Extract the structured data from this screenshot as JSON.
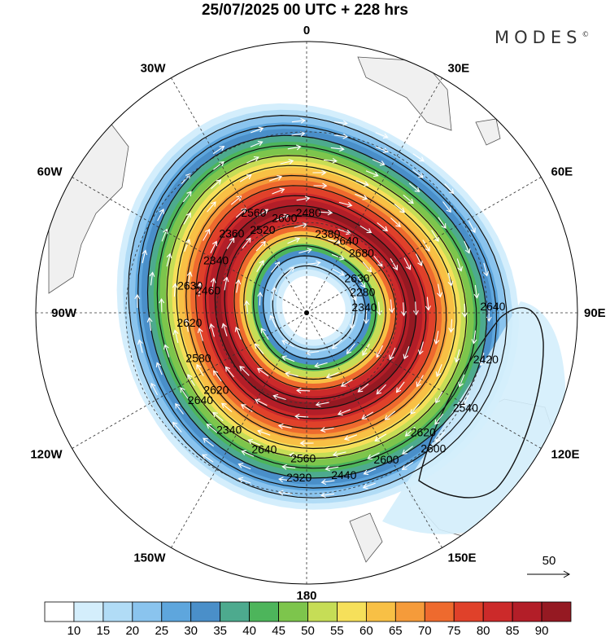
{
  "title": "25/07/2025  00 UTC  + 228 hrs",
  "logo": "MODES",
  "logo_mark": "©",
  "longitude_labels": [
    {
      "text": "0",
      "lon": 0
    },
    {
      "text": "30E",
      "lon": 30
    },
    {
      "text": "60E",
      "lon": 60
    },
    {
      "text": "90E",
      "lon": 90
    },
    {
      "text": "120E",
      "lon": 120
    },
    {
      "text": "150E",
      "lon": 150
    },
    {
      "text": "180",
      "lon": 180
    },
    {
      "text": "150W",
      "lon": -150
    },
    {
      "text": "120W",
      "lon": -120
    },
    {
      "text": "90W",
      "lon": -90
    },
    {
      "text": "60W",
      "lon": -60
    },
    {
      "text": "30W",
      "lon": -30
    }
  ],
  "contour_labels": [
    "2640",
    "2620",
    "2560",
    "2620",
    "2460",
    "2520",
    "2380",
    "2630",
    "2420",
    "2600",
    "2640",
    "2580",
    "2340",
    "2600",
    "2640",
    "2280",
    "2540",
    "2440",
    "2340",
    "2620",
    "2360",
    "2480",
    "2680",
    "2340",
    "2600",
    "2320",
    "2640",
    "2630",
    "2560"
  ],
  "vector_reference": {
    "label": "50"
  },
  "colorbar": {
    "colors": [
      "#ffffff",
      "#d4eefc",
      "#b1dcf6",
      "#8ac4ee",
      "#5ea6dd",
      "#4a8fc9",
      "#4daa8e",
      "#4db55b",
      "#7dc54c",
      "#c6dd56",
      "#f6e05a",
      "#f8c045",
      "#f59b3a",
      "#ee6a2e",
      "#e0412a",
      "#cc2a2a",
      "#b31e28",
      "#951922"
    ],
    "labels": [
      "10",
      "15",
      "20",
      "25",
      "30",
      "35",
      "40",
      "45",
      "50",
      "55",
      "60",
      "65",
      "70",
      "75",
      "80",
      "85",
      "90"
    ]
  }
}
